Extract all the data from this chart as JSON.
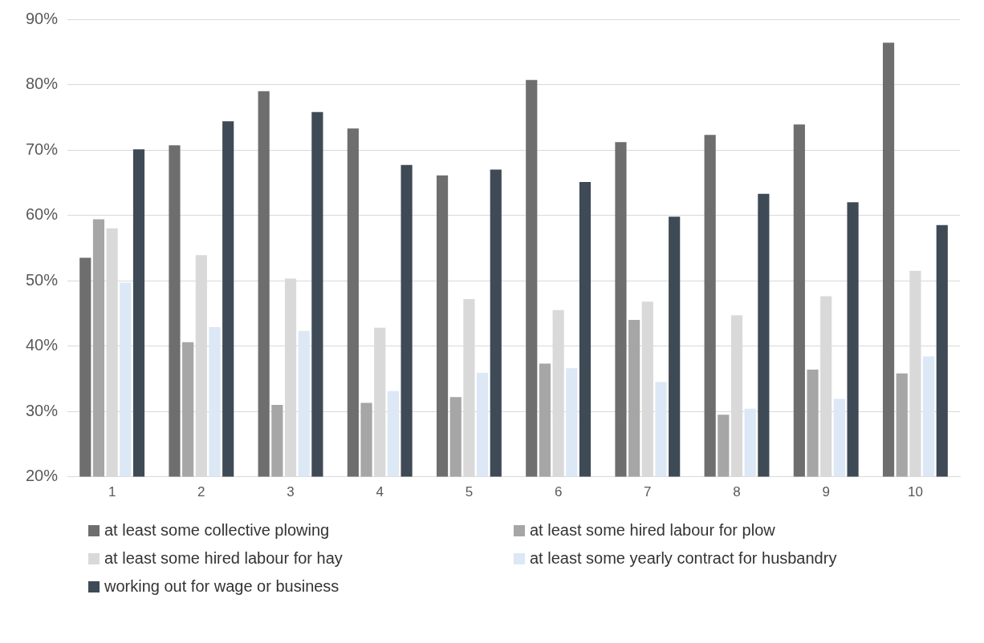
{
  "chart_data": {
    "type": "bar",
    "categories": [
      "1",
      "2",
      "3",
      "4",
      "5",
      "6",
      "7",
      "8",
      "9",
      "10"
    ],
    "ylim": [
      0.2,
      0.9
    ],
    "yticks": [
      {
        "value": 0.2,
        "label": "20%"
      },
      {
        "value": 0.3,
        "label": "30%"
      },
      {
        "value": 0.4,
        "label": "40%"
      },
      {
        "value": 0.5,
        "label": "50%"
      },
      {
        "value": 0.6,
        "label": "60%"
      },
      {
        "value": 0.7,
        "label": "70%"
      },
      {
        "value": 0.8,
        "label": "80%"
      },
      {
        "value": 0.9,
        "label": "90%"
      }
    ],
    "grid": "y",
    "legend": "bottom",
    "series": [
      {
        "name": "at least some collective plowing",
        "color": "#6e6e6e",
        "values": [
          0.535,
          0.707,
          0.79,
          0.733,
          0.661,
          0.807,
          0.712,
          0.723,
          0.739,
          0.864
        ]
      },
      {
        "name": "at least some hired labour for plow",
        "color": "#a6a6a6",
        "values": [
          0.594,
          0.406,
          0.31,
          0.313,
          0.322,
          0.373,
          0.44,
          0.295,
          0.364,
          0.358
        ]
      },
      {
        "name": "at least some hired labour for hay",
        "color": "#d9d9d9",
        "values": [
          0.58,
          0.539,
          0.503,
          0.428,
          0.472,
          0.455,
          0.468,
          0.447,
          0.476,
          0.515
        ]
      },
      {
        "name": "at least some yearly contract for husbandry",
        "color": "#dce8f5",
        "values": [
          0.497,
          0.429,
          0.423,
          0.331,
          0.359,
          0.366,
          0.345,
          0.304,
          0.319,
          0.384
        ]
      },
      {
        "name": "working out for wage or business",
        "color": "#3f4a57",
        "values": [
          0.701,
          0.744,
          0.758,
          0.677,
          0.67,
          0.651,
          0.598,
          0.633,
          0.62,
          0.585
        ]
      }
    ]
  }
}
